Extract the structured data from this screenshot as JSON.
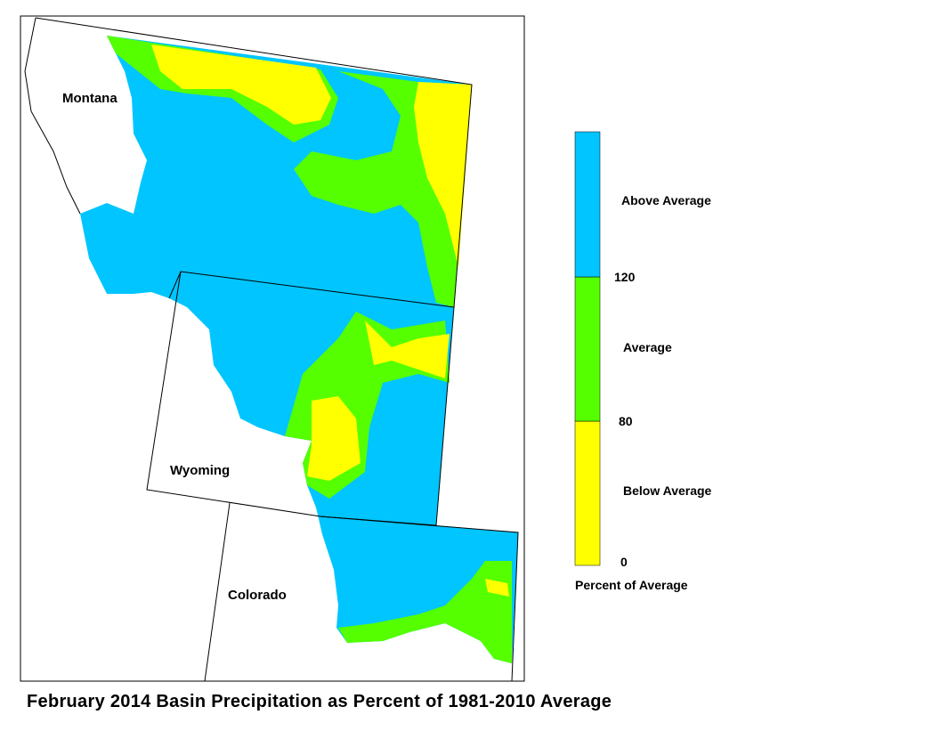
{
  "map": {
    "title": "February 2014 Basin Precipitation as Percent of 1981-2010 Average",
    "states": [
      "Montana",
      "Wyoming",
      "Colorado"
    ],
    "legend": {
      "title": "Percent of Average",
      "classes": [
        {
          "label": "Below Average",
          "color": "#ffff00"
        },
        {
          "label": "Average",
          "color": "#55ff00"
        },
        {
          "label": "Above Average",
          "color": "#00c5ff"
        }
      ],
      "breaks": [
        "0",
        "80",
        "120"
      ]
    }
  }
}
